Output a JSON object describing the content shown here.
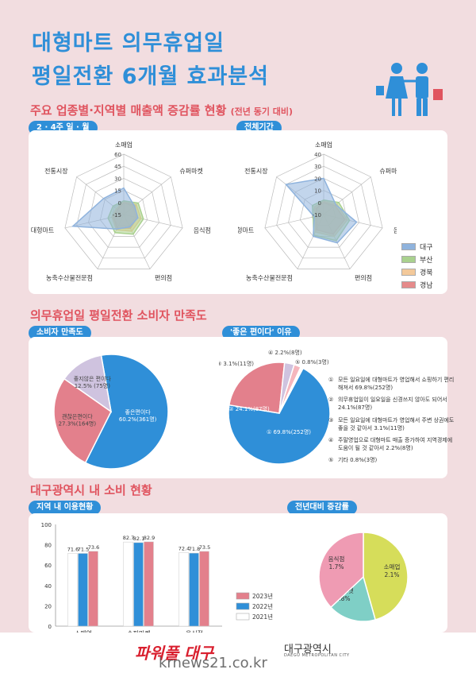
{
  "header": {
    "title_line1": "대형마트 의무휴업일",
    "title_line2": "평일전환 6개월 효과분석"
  },
  "section1": {
    "title": "주요 업종별·지역별 매출액 증감률 현황",
    "subtitle": "(전년 동기 대비)",
    "tab_left": "2 · 4주 일 · 월",
    "tab_right": "전체기간"
  },
  "section2": {
    "title": "의무휴업일 평일전환 소비자 만족도",
    "tab_left": "소비자 만족도",
    "tab_right": "'좋은 편이다' 이유"
  },
  "section3": {
    "title": "대구광역시 내 소비 현황",
    "tab_left": "지역 내 이용현황",
    "tab_right": "전년대비 증감률"
  },
  "colors": {
    "blue": "#2f8fd8",
    "red": "#e0545f",
    "pink_bg": "#f2dde0",
    "daegu": "#8fb3dd",
    "busan": "#a9d18e",
    "gyeongbuk": "#f3c99a",
    "gyeongnam": "#e58a8a"
  },
  "chart_data": [
    {
      "type": "radar",
      "name": "2·4주 일·월",
      "axes": [
        "소매업",
        "슈퍼마켓",
        "음식점",
        "편의점",
        "농축수산물전문점",
        "대형마트",
        "전통시장"
      ],
      "ticks": [
        60,
        45,
        30,
        15,
        0,
        -15
      ],
      "tick_labels": [
        "60",
        "45",
        "30",
        "15",
        "0",
        "-15"
      ],
      "range": [
        -15,
        60
      ],
      "series": [
        {
          "name": "대구",
          "color": "#8fb3dd",
          "values": [
            18,
            2,
            3,
            2,
            5,
            50,
            17
          ]
        },
        {
          "name": "부산",
          "color": "#a9d18e",
          "values": [
            2,
            8,
            10,
            12,
            10,
            5,
            2
          ]
        },
        {
          "name": "경북",
          "color": "#f3c99a",
          "values": [
            1,
            5,
            7,
            8,
            6,
            0,
            -3
          ]
        },
        {
          "name": "경남",
          "color": "#e58a8a",
          "values": [
            0,
            3,
            2,
            4,
            4,
            -2,
            -5
          ]
        }
      ]
    },
    {
      "type": "radar",
      "name": "전체기간",
      "axes": [
        "소매업",
        "슈퍼마켓",
        "음식점",
        "편의점",
        "농축수산물전문점",
        "대형마트",
        "전통시장"
      ],
      "ticks": [
        40,
        30,
        20,
        10,
        0,
        -10
      ],
      "tick_labels": [
        "40",
        "30",
        "20",
        "10",
        "0",
        "-10"
      ],
      "range": [
        -10,
        40
      ],
      "series": [
        {
          "name": "대구",
          "color": "#8fb3dd",
          "values": [
            20,
            3,
            18,
            16,
            10,
            -2,
            30
          ]
        },
        {
          "name": "부산",
          "color": "#a9d18e",
          "values": [
            2,
            6,
            12,
            14,
            9,
            -1,
            2
          ]
        },
        {
          "name": "경북",
          "color": "#f3c99a",
          "values": [
            1,
            4,
            10,
            10,
            6,
            -3,
            0
          ]
        },
        {
          "name": "경남",
          "color": "#e58a8a",
          "values": [
            0,
            2,
            8,
            8,
            4,
            -4,
            -2
          ]
        }
      ]
    },
    {
      "type": "pie",
      "name": "소비자 만족도",
      "slices": [
        {
          "label": "좋은편이다",
          "value": 60.2,
          "text": "60.2%(361명)",
          "color": "#2f8fd8"
        },
        {
          "label": "괜찮은편이다",
          "value": 27.3,
          "text": "27.3%(164명)",
          "color": "#e3808c"
        },
        {
          "label": "좋지않은 편이다",
          "value": 12.5,
          "text": "12.5% (75명)",
          "color": "#cfc3df"
        }
      ]
    },
    {
      "type": "pie",
      "name": "'좋은 편이다' 이유",
      "slices": [
        {
          "label": "①",
          "value": 69.8,
          "text": "① 69.8%(252명)",
          "color": "#2f8fd8"
        },
        {
          "label": "②",
          "value": 24.1,
          "text": "② 24.1%(87명)",
          "color": "#e3808c"
        },
        {
          "label": "③",
          "value": 3.1,
          "text": "③ 3.1%(11명)",
          "color": "#cfc3df"
        },
        {
          "label": "④",
          "value": 2.2,
          "text": "④ 2.2%(8명)",
          "color": "#f5b6bd"
        },
        {
          "label": "⑤",
          "value": 0.8,
          "text": "⑤ 0.8%(3명)",
          "color": "#ffffff"
        }
      ],
      "reasons": [
        {
          "num": "①",
          "text": "모든 일요일에 대형마트가 영업해서 쇼핑하기 편리해져서 69.8%(252명)"
        },
        {
          "num": "②",
          "text": "의무휴업일이 일요일을 신경쓰지 않아도 되어서 24.1%(87명)"
        },
        {
          "num": "③",
          "text": "모든 일요일에 대형마트가 영업해서 주변 상권에도 좋을 것 같아서 3.1%(11명)"
        },
        {
          "num": "④",
          "text": "주말영업으로 대형마트 매출 증가하여 지역경제에 도움이 될 것 같아서 2.2%(8명)"
        },
        {
          "num": "⑤",
          "text": "기타 0.8%(3명)"
        }
      ]
    },
    {
      "type": "bar",
      "name": "지역 내 이용현황",
      "categories": [
        "소매업",
        "슈퍼마켓",
        "음식점"
      ],
      "ylim": [
        0,
        100
      ],
      "yticks": [
        0,
        20,
        40,
        60,
        80,
        100
      ],
      "series": [
        {
          "name": "2021년",
          "color": "#ffffff",
          "values": [
            71.6,
            82.7,
            72.4
          ]
        },
        {
          "name": "2022년",
          "color": "#2f8fd8",
          "values": [
            71.5,
            82.1,
            71.8
          ]
        },
        {
          "name": "2023년",
          "color": "#e3808c",
          "values": [
            73.6,
            82.9,
            73.5
          ]
        }
      ],
      "legend_order": [
        "2023년",
        "2022년",
        "2021년"
      ]
    },
    {
      "type": "pie",
      "name": "전년대비 증감률",
      "slices": [
        {
          "label": "소매업",
          "value": 2.1,
          "text": "2.1%",
          "color": "#d6dd5a"
        },
        {
          "label": "슈퍼마켓",
          "value": 0.8,
          "text": "0.8%",
          "color": "#7fcfc6"
        },
        {
          "label": "음식점",
          "value": 1.7,
          "text": "1.7%",
          "color": "#ef9bb3"
        }
      ]
    }
  ],
  "footer": {
    "brand_left": "파워풀 대구",
    "brand_right": "대구광역시",
    "brand_right_sub": "DAEGU METROPOLITAN CITY",
    "watermark": "krnews21.co.kr"
  }
}
